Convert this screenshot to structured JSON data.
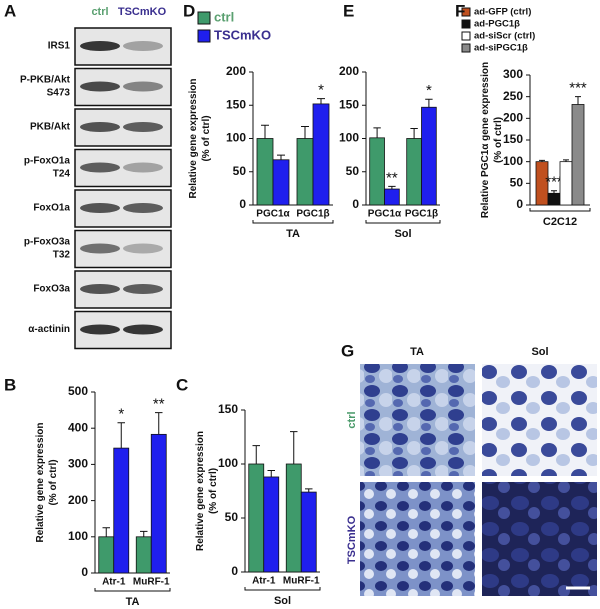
{
  "panels": [
    "A",
    "B",
    "C",
    "D",
    "E",
    "F",
    "G"
  ],
  "blot": {
    "columns": [
      "ctrl",
      "TSCmKO"
    ],
    "rows": [
      [
        "IRS1"
      ],
      [
        "P-PKB/Akt",
        "S473"
      ],
      [
        "PKB/Akt"
      ],
      [
        "p-FoxO1a",
        "T24"
      ],
      [
        "FoxO1a"
      ],
      [
        "p-FoxO3a",
        "T32"
      ],
      [
        "FoxO3a"
      ],
      [
        "α-actinin"
      ]
    ]
  },
  "micrographs": {
    "columns": [
      "TA",
      "Sol"
    ],
    "rows": [
      "ctrl",
      "TSCmKO"
    ]
  },
  "chart_data": [
    {
      "type": "bar",
      "y_label": [
        "Relative gene expression",
        "(% of ctrl)"
      ],
      "categories": [
        "Atr-1",
        "MuRF-1"
      ],
      "group_label": "TA",
      "series": [
        {
          "color": "#3f9a6b",
          "values": [
            100,
            100
          ],
          "errors": [
            25,
            15
          ],
          "significance": [
            null,
            null
          ]
        },
        {
          "color": "#1f1fee",
          "values": [
            345,
            383
          ],
          "errors": [
            70,
            60
          ],
          "significance": [
            "*",
            "**"
          ]
        }
      ],
      "ylim": [
        0,
        500
      ],
      "yticks": [
        0,
        100,
        200,
        300,
        400,
        500
      ]
    },
    {
      "type": "bar",
      "y_label": [
        "Relative gene expression",
        "(% of ctrl)"
      ],
      "categories": [
        "Atr-1",
        "MuRF-1"
      ],
      "group_label": "Sol",
      "series": [
        {
          "color": "#3f9a6b",
          "values": [
            100,
            100
          ],
          "errors": [
            17,
            30
          ],
          "significance": [
            null,
            null
          ]
        },
        {
          "color": "#1f1fee",
          "values": [
            88,
            74
          ],
          "errors": [
            6,
            3
          ],
          "significance": [
            null,
            null
          ]
        }
      ],
      "ylim": [
        0,
        150
      ],
      "yticks": [
        0,
        50,
        100,
        150
      ]
    },
    {
      "type": "bar",
      "y_label": [
        "Relative gene expression",
        "(% of ctrl)"
      ],
      "categories": [
        "PGC1α",
        "PGC1β"
      ],
      "group_label": "TA",
      "series": [
        {
          "name": "ctrl",
          "color": "#3f9a6b",
          "values": [
            100,
            100
          ],
          "errors": [
            20,
            18
          ],
          "significance": [
            null,
            null
          ]
        },
        {
          "name": "TSCmKO",
          "color": "#1f1fee",
          "values": [
            68,
            152
          ],
          "errors": [
            7,
            8
          ],
          "significance": [
            null,
            "*"
          ]
        }
      ],
      "ylim": [
        0,
        200
      ],
      "yticks": [
        0,
        50,
        100,
        150,
        200
      ]
    },
    {
      "type": "bar",
      "categories": [
        "PGC1α",
        "PGC1β"
      ],
      "group_label": "Sol",
      "series": [
        {
          "color": "#3f9a6b",
          "values": [
            101,
            100
          ],
          "errors": [
            15,
            15
          ],
          "significance": [
            null,
            null
          ]
        },
        {
          "color": "#1f1fee",
          "values": [
            24,
            147
          ],
          "errors": [
            4,
            12
          ],
          "significance": [
            "**",
            "*"
          ]
        }
      ],
      "ylim": [
        0,
        200
      ],
      "yticks": [
        0,
        50,
        100,
        150,
        200
      ]
    },
    {
      "type": "bar",
      "y_label": [
        "Relative PGC1α gene expression",
        "(% of ctrl)"
      ],
      "categories": [
        null
      ],
      "group_label": "C2C12",
      "series": [
        {
          "name": "ad-GFP (ctrl)",
          "color": "#c0501f",
          "values": [
            100
          ],
          "errors": [
            3
          ],
          "significance": [
            null
          ]
        },
        {
          "name": "ad-PGC1β",
          "color": "#111111",
          "values": [
            27
          ],
          "errors": [
            6
          ],
          "significance": [
            "***"
          ]
        },
        {
          "name": "ad-siScr (ctrl)",
          "color": "#ffffff",
          "values": [
            100
          ],
          "errors": [
            4
          ],
          "significance": [
            null
          ]
        },
        {
          "name": "ad-siPGC1β",
          "color": "#8a8a8a",
          "values": [
            232
          ],
          "errors": [
            18
          ],
          "significance": [
            "***"
          ]
        }
      ],
      "ylim": [
        0,
        300
      ],
      "yticks": [
        0,
        50,
        100,
        150,
        200,
        250,
        300
      ]
    }
  ]
}
